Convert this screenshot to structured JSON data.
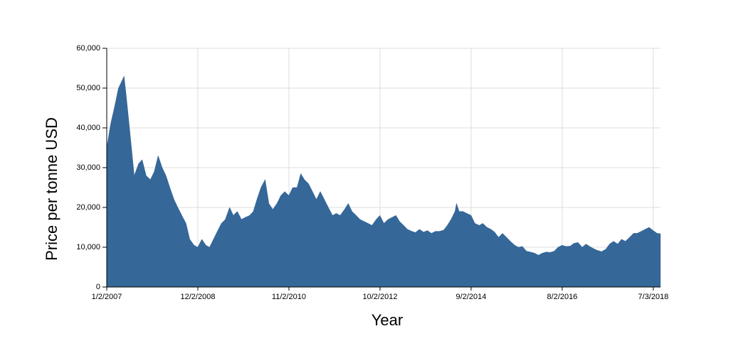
{
  "chart_data": {
    "type": "area",
    "x_label": "Year",
    "y_label": "Price per tonne USD",
    "color": "#356799",
    "grid": true,
    "x": [
      "1/2/2007",
      "2/1/2007",
      "3/1/2007",
      "4/2/2007",
      "5/1/2007",
      "5/15/2007",
      "6/1/2007",
      "7/2/2007",
      "8/1/2007",
      "9/4/2007",
      "10/1/2007",
      "11/1/2007",
      "12/3/2007",
      "1/2/2008",
      "2/1/2008",
      "3/3/2008",
      "4/1/2008",
      "5/1/2008",
      "6/2/2008",
      "7/1/2008",
      "8/1/2008",
      "9/2/2008",
      "10/1/2008",
      "11/3/2008",
      "12/1/2008",
      "1/2/2009",
      "2/2/2009",
      "3/2/2009",
      "4/1/2009",
      "5/1/2009",
      "6/1/2009",
      "7/1/2009",
      "8/3/2009",
      "9/1/2009",
      "10/1/2009",
      "11/2/2009",
      "12/1/2009",
      "1/4/2010",
      "2/1/2010",
      "3/1/2010",
      "4/1/2010",
      "5/3/2010",
      "6/1/2010",
      "7/1/2010",
      "8/2/2010",
      "9/1/2010",
      "10/1/2010",
      "11/1/2010",
      "12/1/2010",
      "1/3/2011",
      "2/1/2011",
      "3/1/2011",
      "4/1/2011",
      "5/2/2011",
      "6/1/2011",
      "7/1/2011",
      "8/1/2011",
      "9/1/2011",
      "10/3/2011",
      "11/1/2011",
      "12/1/2011",
      "1/3/2012",
      "2/1/2012",
      "3/1/2012",
      "4/2/2012",
      "5/1/2012",
      "6/1/2012",
      "7/2/2012",
      "8/1/2012",
      "9/3/2012",
      "10/1/2012",
      "11/1/2012",
      "12/3/2012",
      "1/2/2013",
      "2/1/2013",
      "3/1/2013",
      "4/1/2013",
      "5/1/2013",
      "6/3/2013",
      "7/1/2013",
      "8/1/2013",
      "9/2/2013",
      "10/1/2013",
      "11/1/2013",
      "12/2/2013",
      "1/2/2014",
      "2/3/2014",
      "3/3/2014",
      "4/1/2014",
      "5/1/2014",
      "5/13/2014",
      "6/2/2014",
      "7/1/2014",
      "8/1/2014",
      "9/2/2014",
      "10/1/2014",
      "11/3/2014",
      "12/1/2014",
      "1/2/2015",
      "2/2/2015",
      "3/2/2015",
      "4/1/2015",
      "5/1/2015",
      "6/1/2015",
      "7/1/2015",
      "8/3/2015",
      "9/1/2015",
      "10/1/2015",
      "11/2/2015",
      "12/1/2015",
      "1/4/2016",
      "2/1/2016",
      "3/1/2016",
      "4/1/2016",
      "5/2/2016",
      "6/1/2016",
      "7/1/2016",
      "8/1/2016",
      "9/1/2016",
      "10/3/2016",
      "11/1/2016",
      "12/1/2016",
      "1/3/2017",
      "2/1/2017",
      "3/1/2017",
      "4/3/2017",
      "5/1/2017",
      "6/1/2017",
      "7/3/2017",
      "8/1/2017",
      "9/1/2017",
      "10/2/2017",
      "11/1/2017",
      "12/1/2017",
      "1/2/2018",
      "2/1/2018",
      "3/1/2018",
      "4/2/2018",
      "5/1/2018",
      "6/1/2018",
      "7/2/2018",
      "8/1/2018",
      "8/27/2018"
    ],
    "values": [
      35000,
      41000,
      45000,
      50000,
      52000,
      53000,
      48000,
      38000,
      28000,
      31000,
      32000,
      28000,
      27000,
      29000,
      33000,
      30000,
      28000,
      25000,
      22000,
      20000,
      18000,
      16000,
      12000,
      10500,
      10000,
      12000,
      10500,
      10000,
      12000,
      14000,
      16000,
      17000,
      20000,
      18000,
      19000,
      17000,
      17500,
      18000,
      19000,
      22000,
      25000,
      27000,
      21000,
      19500,
      21000,
      23000,
      24000,
      23000,
      25000,
      25000,
      28500,
      27000,
      26000,
      24000,
      22000,
      24000,
      22000,
      20000,
      18000,
      18500,
      18000,
      19500,
      21000,
      19000,
      18000,
      17000,
      16500,
      16000,
      15500,
      17000,
      18000,
      16000,
      17000,
      17500,
      18000,
      16500,
      15500,
      14500,
      14000,
      13700,
      14500,
      13800,
      14200,
      13500,
      14000,
      14000,
      14300,
      15500,
      17000,
      19000,
      21000,
      19000,
      19000,
      18500,
      18000,
      16000,
      15500,
      16000,
      15000,
      14500,
      13800,
      12500,
      13500,
      12500,
      11500,
      10500,
      10000,
      10200,
      9000,
      8800,
      8500,
      8000,
      8500,
      8800,
      8700,
      9000,
      10000,
      10500,
      10200,
      10300,
      11000,
      11200,
      10000,
      10800,
      10200,
      9600,
      9200,
      8900,
      9500,
      10800,
      11500,
      10800,
      12000,
      11500,
      12500,
      13500,
      13500,
      14000,
      14500,
      15000,
      14200,
      13500,
      13400
    ],
    "xlim": [
      "1/2/2007",
      "8/27/2018"
    ],
    "xticks": [
      "1/2/2007",
      "12/2/2008",
      "11/2/2010",
      "10/2/2012",
      "9/2/2014",
      "8/2/2016",
      "7/3/2018"
    ],
    "ylim": [
      0,
      60000
    ],
    "yticks": [
      0,
      {
        "value": 10000,
        "label": "10,000"
      },
      {
        "value": 20000,
        "label": "20,000"
      },
      {
        "value": 30000,
        "label": "30,000"
      },
      {
        "value": 40000,
        "label": "40,000"
      },
      {
        "value": 50000,
        "label": "50,000"
      },
      {
        "value": 60000,
        "label": "60,000"
      }
    ]
  }
}
